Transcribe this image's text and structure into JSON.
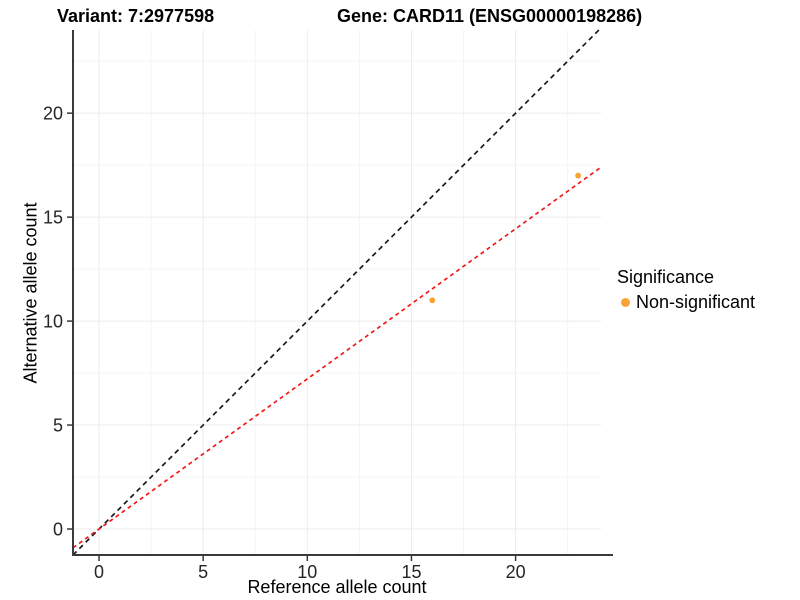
{
  "colors": {
    "point": "#F8A434",
    "identity_line": "#1A1A1A",
    "fit_line": "#F11A1A",
    "axis_line": "#3A3A3A",
    "grid_major": "#ECECEC",
    "grid_minor": "#F5F5F5",
    "tick_text": "#262626"
  },
  "chart_data": {
    "type": "scatter",
    "title_left": "Variant: 7:2977598",
    "title_right": "Gene: CARD11 (ENSG00000198286)",
    "xlabel": "Reference allele count",
    "ylabel": "Alternative allele count",
    "xlim": [
      -1.25,
      24.1
    ],
    "ylim": [
      -1.25,
      24.0
    ],
    "x_ticks": [
      0,
      5,
      10,
      15,
      20
    ],
    "y_ticks": [
      0,
      5,
      10,
      15,
      20
    ],
    "minor_grid_step": 2.5,
    "grid": true,
    "legend": {
      "title": "Significance",
      "position": "right",
      "items": [
        {
          "label": "Non-significant",
          "color": "#F8A434"
        }
      ]
    },
    "series": [
      {
        "name": "Non-significant",
        "color": "#F8A434",
        "marker": "circle",
        "points": [
          {
            "x": 16,
            "y": 11
          },
          {
            "x": 23,
            "y": 17
          }
        ]
      }
    ],
    "reference_lines": [
      {
        "name": "identity-line",
        "slope": 1,
        "intercept": 0,
        "color": "#1A1A1A",
        "dash": [
          5,
          4
        ]
      },
      {
        "name": "fit-line",
        "slope": 0.722,
        "intercept": 0,
        "color": "#F11A1A",
        "dash": [
          4,
          3.5
        ]
      }
    ]
  }
}
